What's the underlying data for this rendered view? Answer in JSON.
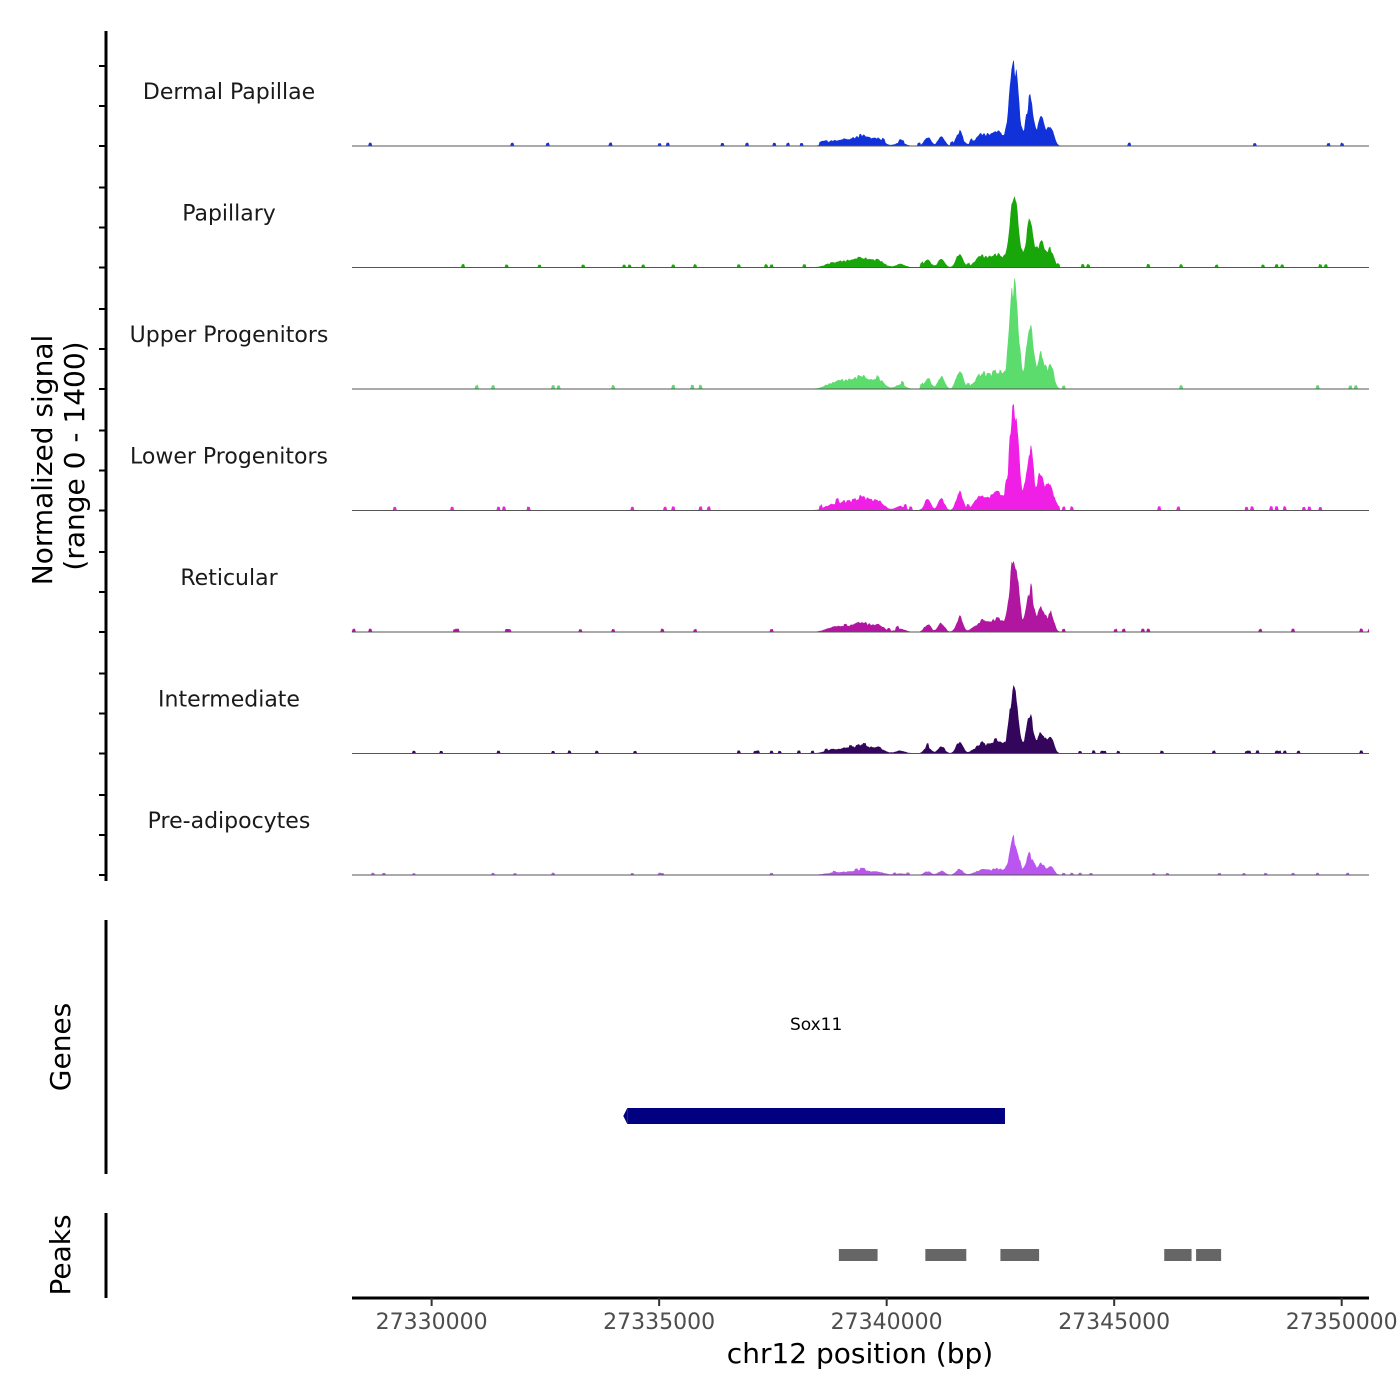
{
  "chart_data": {
    "type": "area",
    "title": "",
    "chromosome": "chr12",
    "xlabel": "chr12 position (bp)",
    "ylabel_line1": "Normalized signal",
    "ylabel_line2": "(range 0 - 1400)",
    "ylim": [
      0,
      1400
    ],
    "xlim": [
      27328250,
      27350600
    ],
    "x_ticks": [
      27330000,
      27335000,
      27340000,
      27345000,
      27350000
    ],
    "x_tick_labels": [
      "27330000",
      "27335000",
      "27340000",
      "27345000",
      "27350000"
    ],
    "tracks": [
      {
        "name": "Dermal Papillae",
        "color": "#1232d9",
        "peak_scale": 1.0
      },
      {
        "name": "Papillary",
        "color": "#19a60a",
        "peak_scale": 0.95
      },
      {
        "name": "Upper Progenitors",
        "color": "#5bdc6c",
        "peak_scale": 1.3
      },
      {
        "name": "Lower Progenitors",
        "color": "#f01fe6",
        "peak_scale": 1.3
      },
      {
        "name": "Reticular",
        "color": "#b0169f",
        "peak_scale": 0.92
      },
      {
        "name": "Intermediate",
        "color": "#33065c",
        "peak_scale": 0.8
      },
      {
        "name": "Pre-adipocytes",
        "color": "#bb55ef",
        "peak_scale": 0.43
      }
    ],
    "signal_profile": [
      {
        "center": 27342800,
        "width": 90,
        "height": 1000
      },
      {
        "center": 27343150,
        "width": 80,
        "height": 560
      },
      {
        "center": 27343400,
        "width": 70,
        "height": 330
      },
      {
        "center": 27343600,
        "width": 70,
        "height": 230
      },
      {
        "center": 27342450,
        "width": 130,
        "height": 160
      },
      {
        "center": 27342100,
        "width": 150,
        "height": 140
      },
      {
        "center": 27341600,
        "width": 70,
        "height": 170
      },
      {
        "center": 27341200,
        "width": 70,
        "height": 110
      },
      {
        "center": 27340900,
        "width": 70,
        "height": 100
      },
      {
        "center": 27339800,
        "width": 130,
        "height": 90
      },
      {
        "center": 27339450,
        "width": 150,
        "height": 120
      },
      {
        "center": 27339100,
        "width": 150,
        "height": 70
      },
      {
        "center": 27338800,
        "width": 150,
        "height": 50
      },
      {
        "center": 27340300,
        "width": 100,
        "height": 40
      }
    ],
    "genes_track_label": "Genes",
    "genes": [
      {
        "name": "Sox11",
        "start": 27334300,
        "end": 27342600,
        "color": "#000080"
      }
    ],
    "peaks_track_label": "Peaks",
    "peak_color": "#666666",
    "peaks": [
      {
        "start": 27338950,
        "end": 27339800
      },
      {
        "start": 27340850,
        "end": 27341750
      },
      {
        "start": 27342500,
        "end": 27343350
      },
      {
        "start": 27346100,
        "end": 27346700
      },
      {
        "start": 27346800,
        "end": 27347350
      }
    ]
  }
}
